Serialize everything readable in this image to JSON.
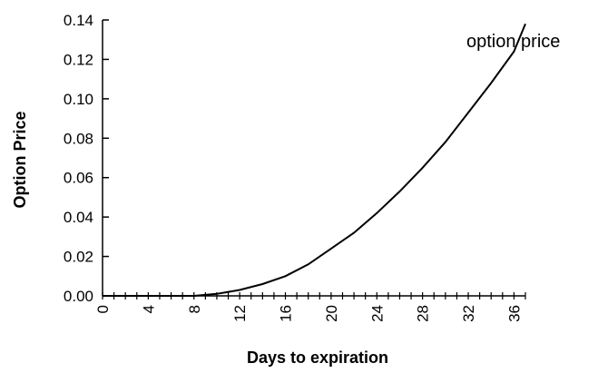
{
  "chart_data": {
    "type": "line",
    "title": "",
    "xlabel": "Days to expiration",
    "ylabel": "Option Price",
    "xlim": [
      0,
      37
    ],
    "ylim": [
      0,
      0.14
    ],
    "x_ticks": [
      "0",
      "4",
      "8",
      "12",
      "16",
      "20",
      "24",
      "28",
      "32",
      "36"
    ],
    "y_ticks": [
      "0.00",
      "0.02",
      "0.04",
      "0.06",
      "0.08",
      "0.10",
      "0.12",
      "0.14"
    ],
    "grid": false,
    "series": [
      {
        "name": "option price",
        "color": "#000000",
        "x": [
          0,
          2,
          4,
          6,
          8,
          10,
          12,
          14,
          16,
          18,
          20,
          22,
          24,
          26,
          28,
          30,
          32,
          34,
          36,
          37
        ],
        "y": [
          0,
          0,
          0,
          0,
          0,
          0.001,
          0.003,
          0.006,
          0.01,
          0.016,
          0.024,
          0.032,
          0.042,
          0.053,
          0.065,
          0.078,
          0.093,
          0.108,
          0.124,
          0.138
        ]
      }
    ]
  }
}
